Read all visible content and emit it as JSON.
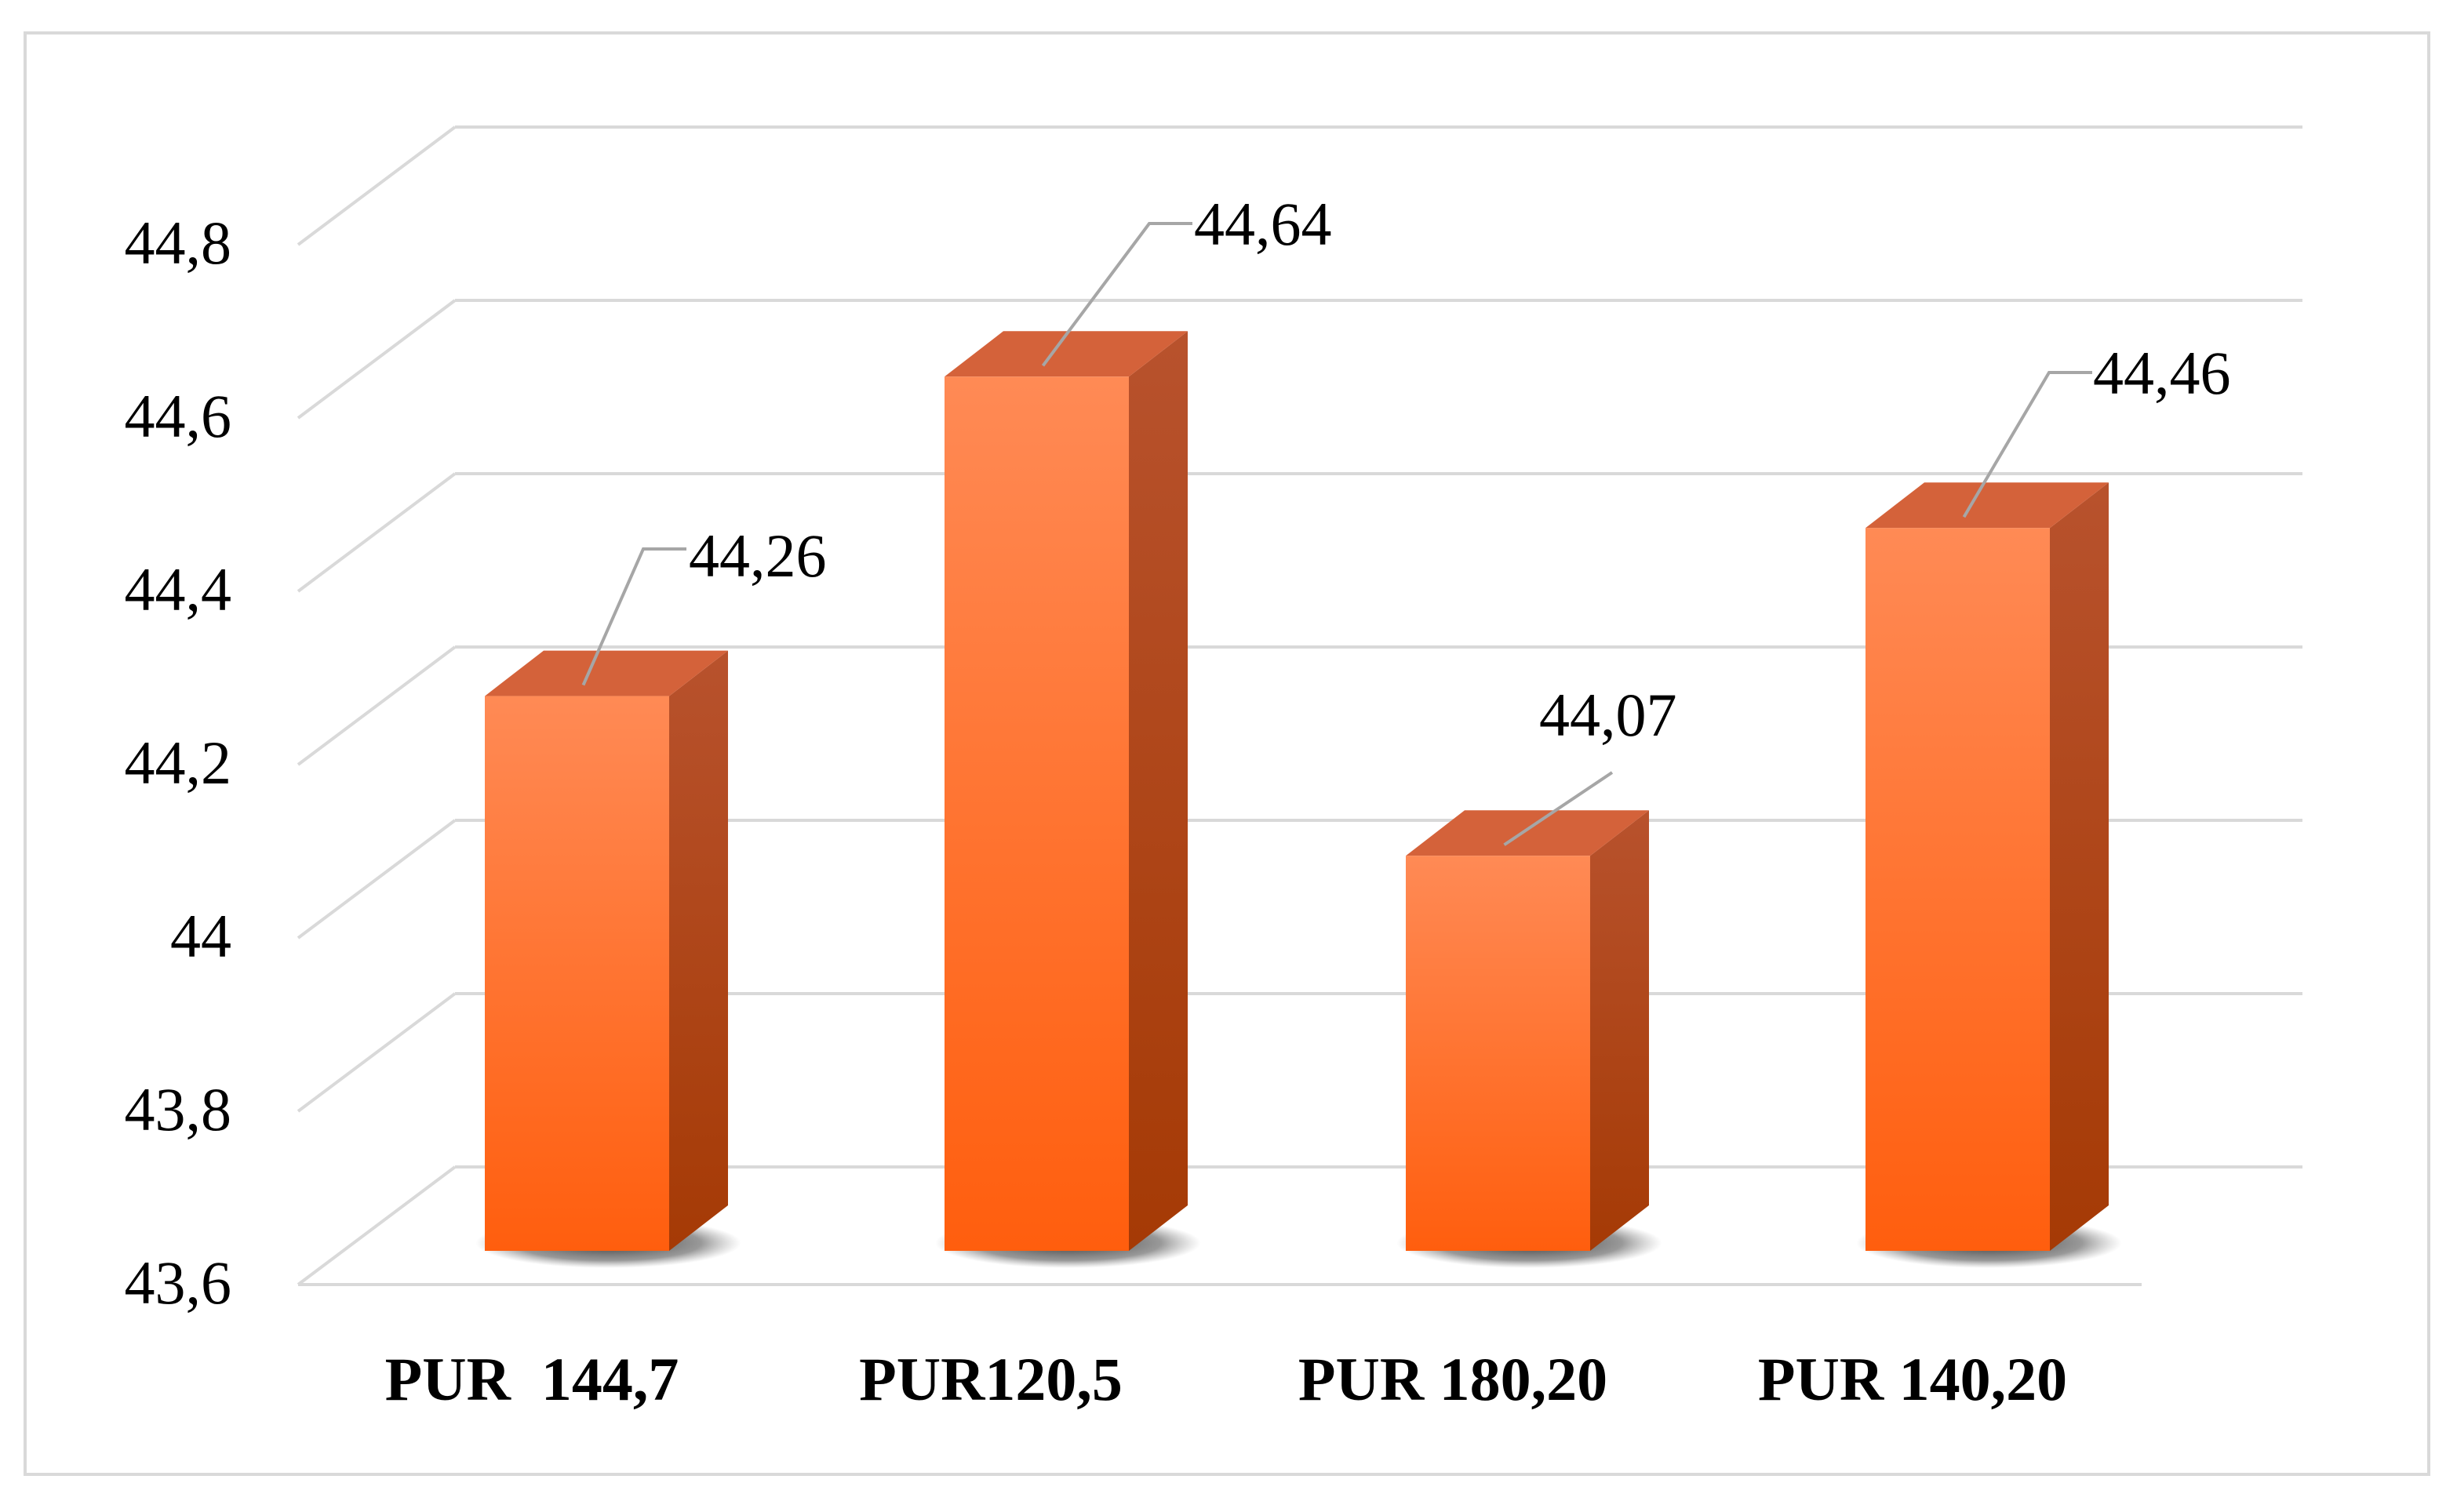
{
  "chart_data": {
    "type": "bar",
    "style": "3d-column",
    "categories": [
      "PUR  144,7",
      "PUR120,5",
      "PUR 180,20",
      "PUR 140,20"
    ],
    "values": [
      44.26,
      44.64,
      44.07,
      44.46
    ],
    "value_labels": [
      "44,26",
      "44,64",
      "44,07",
      "44,46"
    ],
    "ylim": [
      43.6,
      44.8
    ],
    "yticks": [
      43.6,
      43.8,
      44.0,
      44.2,
      44.4,
      44.6,
      44.8
    ],
    "ytick_labels": [
      "43,6",
      "43,8",
      "44",
      "44,2",
      "44,4",
      "44,6",
      "44,8"
    ],
    "grid": true,
    "legend": "none",
    "title": "",
    "xlabel": "",
    "ylabel": "",
    "colors": {
      "bar_front_top": "#ff8a55",
      "bar_front_bottom": "#ff5e0e",
      "bar_top": "#d4623a",
      "bar_side_top": "#b8522d",
      "bar_side_bottom": "#a53a05",
      "gridline": "#d9d9d9",
      "leader": "#a6a6a6"
    }
  }
}
